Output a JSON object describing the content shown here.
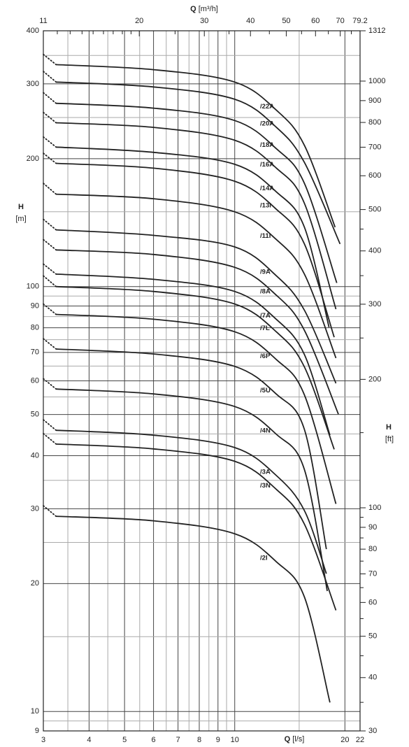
{
  "chart_data": {
    "type": "line",
    "xscale": "log",
    "yscale": "log",
    "grid": true,
    "color": "#222222",
    "x2label": {
      "symbol": "Q",
      "unit": "[m³/h]"
    },
    "xlabel": {
      "symbol": "Q",
      "unit": "[l/s]"
    },
    "ylabel": {
      "symbol": "H",
      "unit": "[m]"
    },
    "y2label": {
      "symbol": "H",
      "unit": "[ft]"
    },
    "xlim": [
      3,
      22
    ],
    "xticks": [
      3,
      4,
      5,
      6,
      7,
      8,
      9,
      10,
      20,
      22
    ],
    "xminor_ticks": [
      3.5,
      4.5,
      5.5,
      6.5,
      7.5,
      8.5,
      9.5,
      15
    ],
    "x2lim": [
      11,
      79.2
    ],
    "x2ticks": [
      11,
      20,
      30,
      40,
      50,
      60,
      70,
      79.2
    ],
    "x2minor_ticks": [
      12,
      13,
      14,
      15,
      16,
      17,
      18,
      19,
      25,
      35,
      45,
      55,
      65,
      75
    ],
    "ylim": [
      9,
      400
    ],
    "yticks": [
      9,
      10,
      20,
      30,
      40,
      50,
      60,
      70,
      80,
      90,
      100,
      200,
      300,
      400
    ],
    "yminor_ticks": [
      9.5,
      15,
      25,
      35,
      45,
      55,
      65,
      75,
      85,
      95,
      150,
      250,
      350
    ],
    "y2lim": [
      30,
      1312
    ],
    "y2ticks": [
      30,
      40,
      50,
      60,
      70,
      80,
      90,
      100,
      200,
      300,
      400,
      500,
      600,
      700,
      800,
      900,
      1000,
      1312
    ],
    "y2minor_ticks": [
      35,
      45,
      55,
      65,
      75,
      85,
      95,
      150,
      250,
      350,
      450
    ],
    "series": [
      {
        "name": "/22A",
        "x": [
          3,
          3.25,
          6,
          10,
          13,
          15.5,
          18.8
        ],
        "values": [
          352,
          333,
          324,
          303,
          260,
          215,
          138
        ]
      },
      {
        "name": "/20A",
        "x": [
          3,
          3.25,
          6,
          10,
          13,
          15.5,
          19.4
        ],
        "values": [
          321,
          303,
          295,
          276,
          237,
          196,
          126
        ]
      },
      {
        "name": "/18A",
        "x": [
          3,
          3.25,
          6,
          10,
          13,
          15.5,
          19.0
        ],
        "values": [
          286,
          270,
          263,
          246,
          211,
          175,
          102
        ]
      },
      {
        "name": "/16A",
        "x": [
          3,
          3.25,
          6,
          10,
          13,
          15.5,
          18.9
        ],
        "values": [
          257,
          243,
          237,
          221,
          190,
          157,
          88.5
        ]
      },
      {
        "name": "/14A",
        "x": [
          3,
          3.25,
          6,
          10,
          13,
          15.5,
          18.1
        ],
        "values": [
          225,
          213,
          207,
          194,
          167,
          138,
          80.2
        ]
      },
      {
        "name": "/13I",
        "x": [
          3,
          3.25,
          6,
          10,
          13,
          15.5,
          18.7
        ],
        "values": [
          206,
          195,
          190,
          177,
          152,
          126,
          76
        ]
      },
      {
        "name": "/11I",
        "x": [
          3,
          3.25,
          6,
          10,
          13,
          15.5,
          18.9
        ],
        "values": [
          175,
          165,
          161,
          150,
          129,
          107,
          67.9
        ]
      },
      {
        "name": "/9A",
        "x": [
          3,
          3.25,
          6,
          10,
          13,
          15.5,
          18.9
        ],
        "values": [
          144,
          136,
          132,
          124,
          106,
          88,
          59.2
        ]
      },
      {
        "name": "/8A",
        "x": [
          3,
          3.25,
          6,
          10,
          13,
          15.5,
          19.2
        ],
        "values": [
          129,
          122,
          119,
          111,
          95.4,
          78.9,
          50.1
        ]
      },
      {
        "name": "/7A",
        "x": [
          3,
          3.25,
          6,
          10,
          13,
          15.5,
          18.2
        ],
        "values": [
          113,
          107,
          104,
          97.4,
          83.7,
          69.2,
          44.7
        ]
      },
      {
        "name": "/7L",
        "x": [
          3,
          3.25,
          6,
          10,
          13,
          15.5,
          18.7
        ],
        "values": [
          106,
          100,
          97.4,
          91,
          78.2,
          64.7,
          41.4
        ]
      },
      {
        "name": "/6P",
        "x": [
          3,
          3.25,
          6,
          10,
          13,
          15.5,
          18.9
        ],
        "values": [
          91,
          86,
          83.8,
          78.3,
          67.3,
          55.6,
          30.8
        ]
      },
      {
        "name": "/5U",
        "x": [
          3,
          3.25,
          6,
          10,
          13,
          15.5,
          17.8
        ],
        "values": [
          75.4,
          71.3,
          69.4,
          64.9,
          55.8,
          46.1,
          24.1
        ]
      },
      {
        "name": "/4N",
        "x": [
          3,
          3.25,
          6,
          10,
          13,
          15.5,
          17.9
        ],
        "values": [
          60.7,
          57.4,
          55.9,
          52.2,
          44.9,
          37.1,
          19.2
        ]
      },
      {
        "name": "/3A",
        "x": [
          3,
          3.25,
          6,
          10,
          13,
          15.5,
          17.8
        ],
        "values": [
          48.6,
          45.9,
          44.7,
          41.8,
          35.9,
          29.7,
          21.1
        ]
      },
      {
        "name": "/3N",
        "x": [
          3,
          3.25,
          6,
          10,
          13,
          15.5,
          18.9
        ],
        "values": [
          45.1,
          42.6,
          41.5,
          38.8,
          33.3,
          27.6,
          17.3
        ]
      },
      {
        "name": "/2I",
        "x": [
          3,
          3.25,
          6,
          10,
          13,
          15.5,
          18.2
        ],
        "values": [
          30.5,
          28.8,
          28.1,
          26.2,
          22.5,
          18.6,
          10.5
        ]
      }
    ]
  }
}
